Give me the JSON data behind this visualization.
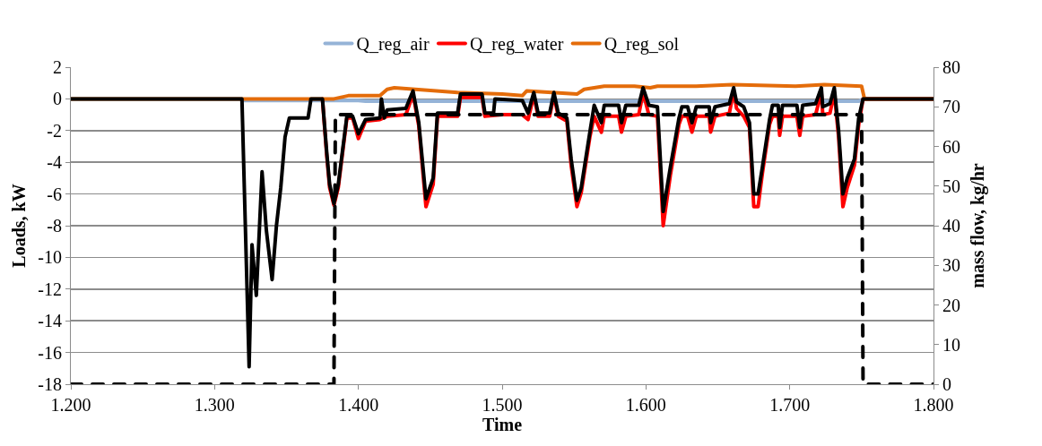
{
  "chart_data": {
    "type": "line",
    "xlabel": "Time",
    "ylabel": "Loads, kW",
    "y2label": "mass flow, kg/hr",
    "xlim": [
      1.2,
      1.8
    ],
    "xticks": [
      {
        "value": 1.2,
        "label": "1.200"
      },
      {
        "value": 1.3,
        "label": "1.300"
      },
      {
        "value": 1.4,
        "label": "1.400"
      },
      {
        "value": 1.5,
        "label": "1.500"
      },
      {
        "value": 1.6,
        "label": "1.600"
      },
      {
        "value": 1.7,
        "label": "1.700"
      },
      {
        "value": 1.8,
        "label": "1.800"
      }
    ],
    "ylim": [
      -18,
      2
    ],
    "yticks": [
      -18,
      -16,
      -14,
      -12,
      -10,
      -8,
      -6,
      -4,
      -2,
      0,
      2
    ],
    "y2lim": [
      0,
      80
    ],
    "y2ticks": [
      0,
      10,
      20,
      30,
      40,
      50,
      60,
      70,
      80
    ],
    "grid": "y",
    "legend": "top",
    "marker": "none",
    "series": [
      {
        "name": "Q_reg_air",
        "color": "#95b3d7",
        "line_style": "solid",
        "x": [
          1.2,
          1.319,
          1.32,
          1.4,
          1.405,
          1.748,
          1.751,
          1.8
        ],
        "values": [
          0,
          0,
          -0.1,
          -0.1,
          -0.15,
          -0.15,
          0,
          0
        ]
      },
      {
        "name": "Q_reg_water",
        "color": "#ff0000",
        "line_style": "solid",
        "x": [
          1.375,
          1.378,
          1.38,
          1.383,
          1.386,
          1.392,
          1.396,
          1.4,
          1.405,
          1.415,
          1.42,
          1.433,
          1.438,
          1.442,
          1.447,
          1.452,
          1.455,
          1.469,
          1.471,
          1.486,
          1.488,
          1.5,
          1.514,
          1.518,
          1.522,
          1.525,
          1.533,
          1.536,
          1.539,
          1.545,
          1.548,
          1.552,
          1.555,
          1.561,
          1.564,
          1.569,
          1.571,
          1.581,
          1.583,
          1.586,
          1.595,
          1.598,
          1.602,
          1.608,
          1.612,
          1.617,
          1.623,
          1.625,
          1.629,
          1.632,
          1.635,
          1.644,
          1.645,
          1.648,
          1.658,
          1.661,
          1.663,
          1.668,
          1.672,
          1.675,
          1.678,
          1.681,
          1.686,
          1.688,
          1.692,
          1.693,
          1.695,
          1.705,
          1.707,
          1.709,
          1.718,
          1.722,
          1.723,
          1.728,
          1.731,
          1.734,
          1.737,
          1.74,
          1.745,
          1.748,
          1.751,
          1.8
        ],
        "values": [
          0,
          -3.6,
          -5.6,
          -6.7,
          -5.6,
          -1.2,
          -1.2,
          -2.5,
          -1.4,
          -1.3,
          -1.1,
          -1.0,
          0.3,
          -1.7,
          -6.8,
          -5.4,
          -1.1,
          -1.1,
          0.1,
          0.1,
          -1.1,
          -1.0,
          -1.0,
          -1.3,
          0.2,
          -1.1,
          -1.1,
          0.2,
          -1.1,
          -1.4,
          -4.2,
          -6.8,
          -5.9,
          -2.4,
          -1.1,
          -2.1,
          -1.1,
          -1.1,
          -2.1,
          -1.1,
          -1.0,
          0.4,
          -1.0,
          -1.1,
          -8.0,
          -4.8,
          -1.6,
          -1.1,
          -1.1,
          -2.1,
          -1.1,
          -1.1,
          -2.1,
          -1.1,
          -0.9,
          0.5,
          -0.6,
          -1.1,
          -1.8,
          -6.8,
          -6.8,
          -4.7,
          -1.6,
          -1.1,
          -1.1,
          -2.3,
          -1.1,
          -1.1,
          -2.3,
          -1.1,
          -1.0,
          0.4,
          -1.0,
          -0.9,
          0.4,
          -2.4,
          -6.8,
          -5.6,
          -4.2,
          -1.6,
          0,
          0
        ]
      },
      {
        "name": "Q_reg_sol",
        "color": "#e46c0a",
        "line_style": "solid",
        "x": [
          1.2,
          1.383,
          1.393,
          1.415,
          1.42,
          1.425,
          1.469,
          1.5,
          1.514,
          1.517,
          1.552,
          1.557,
          1.571,
          1.592,
          1.603,
          1.608,
          1.635,
          1.66,
          1.704,
          1.724,
          1.75,
          1.752,
          1.8
        ],
        "values": [
          0,
          0,
          0.2,
          0.2,
          0.6,
          0.7,
          0.4,
          0.3,
          0.2,
          0.5,
          0.3,
          0.6,
          0.8,
          0.8,
          0.7,
          0.8,
          0.8,
          0.9,
          0.8,
          0.9,
          0.8,
          0,
          0
        ]
      },
      {
        "color": "#000000",
        "line_style": "solid",
        "x": [
          1.2,
          1.319,
          1.324,
          1.326,
          1.329,
          1.333,
          1.336,
          1.34,
          1.343,
          1.346,
          1.349,
          1.352,
          1.365,
          1.367,
          1.375,
          1.378,
          1.38,
          1.383,
          1.386,
          1.392,
          1.396,
          1.4,
          1.405,
          1.415,
          1.416,
          1.418,
          1.42,
          1.433,
          1.438,
          1.442,
          1.447,
          1.452,
          1.455,
          1.469,
          1.471,
          1.486,
          1.488,
          1.494,
          1.495,
          1.514,
          1.518,
          1.522,
          1.525,
          1.533,
          1.536,
          1.539,
          1.545,
          1.548,
          1.552,
          1.555,
          1.561,
          1.564,
          1.569,
          1.571,
          1.581,
          1.583,
          1.586,
          1.595,
          1.598,
          1.602,
          1.608,
          1.612,
          1.617,
          1.623,
          1.625,
          1.629,
          1.632,
          1.635,
          1.644,
          1.645,
          1.648,
          1.658,
          1.661,
          1.663,
          1.668,
          1.672,
          1.675,
          1.678,
          1.681,
          1.686,
          1.688,
          1.692,
          1.693,
          1.695,
          1.705,
          1.707,
          1.709,
          1.718,
          1.722,
          1.723,
          1.728,
          1.731,
          1.734,
          1.737,
          1.74,
          1.745,
          1.748,
          1.751,
          1.8
        ],
        "values": [
          0,
          0,
          -16.9,
          -9.2,
          -12.4,
          -4.6,
          -8.3,
          -11.4,
          -8.0,
          -5.6,
          -2.4,
          -1.2,
          -1.2,
          0,
          0,
          -3.4,
          -5.4,
          -6.6,
          -5.4,
          -1.1,
          -1.1,
          -2.2,
          -1.3,
          -1.2,
          0,
          -1.2,
          -0.7,
          -0.6,
          0.5,
          -1.5,
          -6.3,
          -5.0,
          -0.9,
          -0.9,
          0.3,
          0.3,
          -0.9,
          -0.9,
          0,
          -0.1,
          -0.9,
          0.4,
          -0.9,
          -0.9,
          0.4,
          -0.9,
          -1.2,
          -3.8,
          -6.4,
          -5.6,
          -2.1,
          -0.4,
          -1.5,
          -0.4,
          -0.4,
          -1.5,
          -0.4,
          -0.4,
          0.7,
          -0.4,
          -0.5,
          -7.1,
          -4.3,
          -1.2,
          -0.5,
          -0.5,
          -1.5,
          -0.5,
          -0.5,
          -1.5,
          -0.5,
          -0.3,
          0.7,
          -0.2,
          -0.5,
          -1.5,
          -6.0,
          -6.0,
          -4.3,
          -1.3,
          -0.4,
          -0.4,
          -1.8,
          -0.4,
          -0.4,
          -1.8,
          -0.4,
          -0.3,
          0.7,
          -0.5,
          -0.3,
          0.7,
          -2.0,
          -6.0,
          -5.0,
          -3.8,
          -1.2,
          0,
          0
        ]
      },
      {
        "color": "#000000",
        "line_style": "dashed",
        "axis": "y2",
        "x": [
          1.2,
          1.383,
          1.384,
          1.75,
          1.751,
          1.8
        ],
        "values": [
          0,
          0,
          68,
          68,
          0,
          0
        ]
      }
    ]
  }
}
